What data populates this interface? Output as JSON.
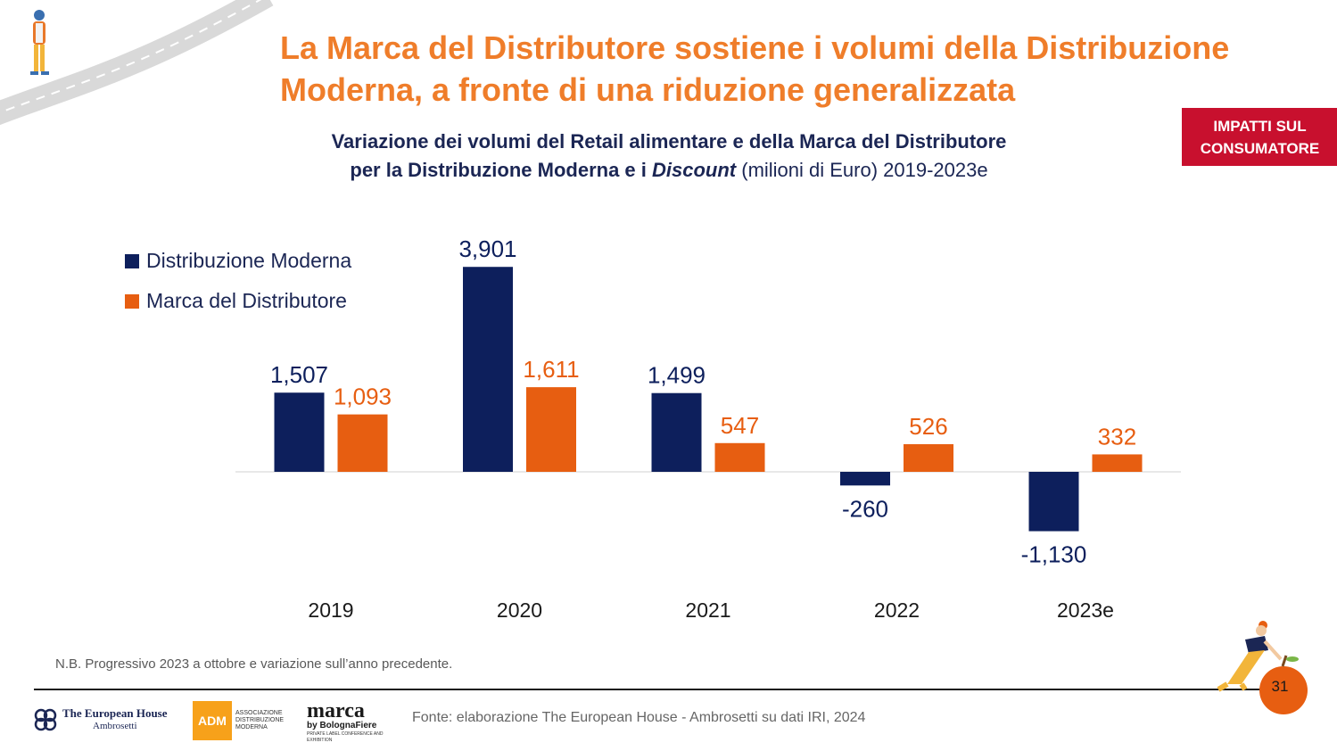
{
  "header": {
    "title_line1": "La Marca del Distributore sostiene i volumi della Distribuzione",
    "title_line2": "Moderna, a fronte di una riduzione generalizzata",
    "badge_line1": "IMPATTI SUL",
    "badge_line2": "CONSUMATORE"
  },
  "colors": {
    "title": "#ef7d2a",
    "navy": "#0d1f5c",
    "orange": "#e75e11",
    "badge": "#c8102e"
  },
  "chart_data": {
    "type": "bar",
    "title_line1": "Variazione dei volumi del Retail alimentare e della Marca del Distributore",
    "title_line2_a": "per la Distribuzione Moderna e i ",
    "title_line2_italic": "Discount",
    "title_line2_b": " (milioni di Euro) 2019-2023e",
    "categories": [
      "2019",
      "2020",
      "2021",
      "2022",
      "2023e"
    ],
    "series": [
      {
        "name": "Distribuzione Moderna",
        "color": "#0d1f5c",
        "values": [
          1507,
          3901,
          1499,
          -260,
          -1130
        ],
        "labels": [
          "1,507",
          "3,901",
          "1,499",
          "-260",
          "-1,130"
        ]
      },
      {
        "name": "Marca del Distributore",
        "color": "#e75e11",
        "values": [
          1093,
          1611,
          547,
          526,
          332
        ],
        "labels": [
          "1,093",
          "1,611",
          "547",
          "526",
          "332"
        ]
      }
    ],
    "legend_position": "top-left",
    "grid": false
  },
  "footer": {
    "note": "N.B. Progressivo 2023 a ottobre e variazione sull’anno precedente.",
    "source": "Fonte: elaborazione The European House - Ambrosetti su dati IRI, 2024",
    "page_number": "31",
    "logos": {
      "teha_line1": "The European House",
      "teha_line2": "Ambrosetti",
      "adm_short": "ADM",
      "adm_caption": "ASSOCIAZIONE DISTRIBUZIONE MODERNA",
      "marca_name": "marca",
      "marca_by": "by BolognaFiere",
      "marca_tagline": "PRIVATE LABEL CONFERENCE AND EXHIBITION"
    }
  }
}
